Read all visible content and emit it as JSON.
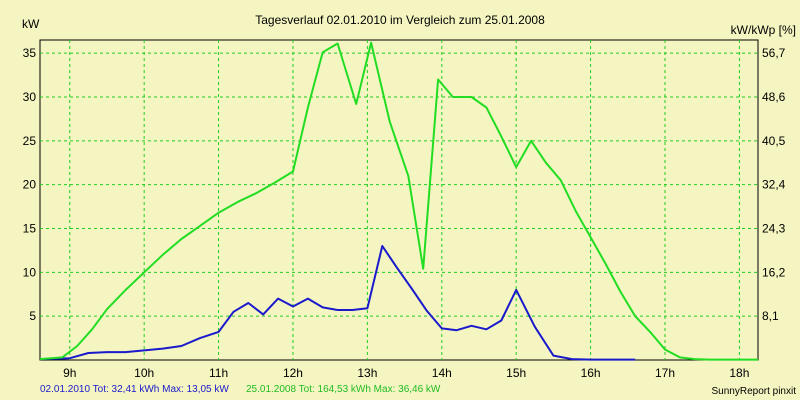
{
  "chart_data": {
    "type": "line",
    "title": "Tagesverlauf 02.01.2010 im Vergleich zum 25.01.2008",
    "ylabel_left": "kW",
    "ylabel_right": "kW/kWp [%]",
    "ylim": [
      0,
      36.5
    ],
    "y_ticks": [
      5,
      10,
      15,
      20,
      25,
      30,
      35
    ],
    "y_right_ticks": [
      "8,1",
      "16,2",
      "24,3",
      "32,4",
      "40,5",
      "48,6",
      "56,7"
    ],
    "x_unit": "hour",
    "xlim": [
      8.6,
      18.25
    ],
    "x_ticks": [
      {
        "v": 9,
        "label": "9h"
      },
      {
        "v": 10,
        "label": "10h"
      },
      {
        "v": 11,
        "label": "11h"
      },
      {
        "v": 12,
        "label": "12h"
      },
      {
        "v": 13,
        "label": "13h"
      },
      {
        "v": 14,
        "label": "14h"
      },
      {
        "v": 15,
        "label": "15h"
      },
      {
        "v": 16,
        "label": "16h"
      },
      {
        "v": 17,
        "label": "17h"
      },
      {
        "v": 18,
        "label": "18h"
      }
    ],
    "grid": true,
    "series": [
      {
        "name": "02.01.2010",
        "color": "#1a1acc",
        "x": [
          8.6,
          9.0,
          9.25,
          9.5,
          9.75,
          10.0,
          10.25,
          10.5,
          10.75,
          11.0,
          11.2,
          11.4,
          11.6,
          11.8,
          12.0,
          12.2,
          12.4,
          12.6,
          12.8,
          13.0,
          13.2,
          13.4,
          13.6,
          13.8,
          14.0,
          14.2,
          14.4,
          14.6,
          14.8,
          15.0,
          15.25,
          15.5,
          15.75,
          16.0,
          16.25,
          16.6
        ],
        "y": [
          0.1,
          0.2,
          0.8,
          0.9,
          0.9,
          1.1,
          1.3,
          1.6,
          2.5,
          3.2,
          5.5,
          6.5,
          5.2,
          7.0,
          6.1,
          7.0,
          6.0,
          5.7,
          5.7,
          5.9,
          13.0,
          10.5,
          8.1,
          5.6,
          3.6,
          3.4,
          3.9,
          3.5,
          4.5,
          8.0,
          3.8,
          0.5,
          0.1,
          0.05,
          0.05,
          0.05
        ]
      },
      {
        "name": "25.01.2008",
        "color": "#22dd22",
        "x": [
          8.6,
          8.9,
          9.1,
          9.3,
          9.5,
          9.75,
          10.0,
          10.25,
          10.5,
          10.75,
          11.0,
          11.25,
          11.5,
          11.75,
          12.0,
          12.2,
          12.4,
          12.6,
          12.85,
          13.05,
          13.3,
          13.55,
          13.75,
          13.95,
          14.15,
          14.4,
          14.6,
          14.8,
          15.0,
          15.2,
          15.4,
          15.6,
          15.8,
          16.0,
          16.2,
          16.4,
          16.6,
          16.8,
          17.0,
          17.2,
          17.4,
          17.6,
          17.8,
          18.0,
          18.25
        ],
        "y": [
          0.1,
          0.3,
          1.6,
          3.5,
          5.8,
          8.0,
          10.0,
          12.0,
          13.8,
          15.3,
          16.8,
          18.0,
          19.0,
          20.2,
          21.5,
          28.8,
          35.1,
          36.1,
          29.2,
          36.2,
          27.2,
          21.0,
          10.4,
          32.0,
          30.0,
          30.0,
          28.8,
          25.5,
          22.0,
          25.0,
          22.5,
          20.5,
          17.0,
          14.0,
          11.0,
          7.8,
          5.0,
          3.2,
          1.2,
          0.3,
          0.1,
          0.05,
          0.05,
          0.05,
          0.05
        ]
      }
    ]
  },
  "footer": {
    "series1_text": "02.01.2010 Tot: 32,41 kWh Max: 13,05 kW",
    "series2_text": "25.01.2008 Tot: 164,53 kWh Max: 36,46 kW",
    "credit": "SunnyReport pinxit"
  }
}
